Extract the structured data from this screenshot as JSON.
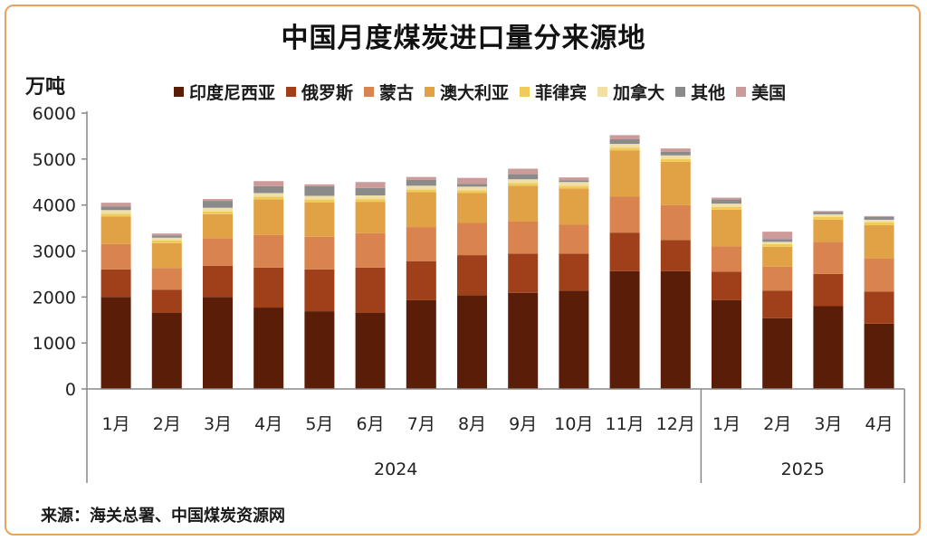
{
  "title": "中国月度煤炭进口量分来源地",
  "source_note": "来源：海关总署、中国煤炭资源网",
  "colors": {
    "frame": "#e9a25a",
    "series": [
      "#5a1e08",
      "#a0401a",
      "#d9834e",
      "#e0a245",
      "#f0cb5a",
      "#f1dfa8",
      "#8a8a8a",
      "#cc9a98"
    ]
  },
  "chart_data": {
    "type": "bar",
    "stacked": true,
    "ylabel": "万吨",
    "ylim": [
      0,
      6000
    ],
    "yticks": [
      0,
      1000,
      2000,
      3000,
      4000,
      5000,
      6000
    ],
    "grid": false,
    "legend_position": "top",
    "categories": [
      "1月",
      "2月",
      "3月",
      "4月",
      "5月",
      "6月",
      "7月",
      "8月",
      "9月",
      "10月",
      "11月",
      "12月",
      "1月",
      "2月",
      "3月",
      "4月"
    ],
    "year_groups": [
      {
        "label": "2024",
        "count": 12
      },
      {
        "label": "2025",
        "count": 4
      }
    ],
    "series": [
      {
        "name": "印度尼西亚",
        "values": [
          2000,
          1660,
          2000,
          1770,
          1690,
          1660,
          1930,
          2040,
          2090,
          2140,
          2560,
          2560,
          1930,
          1540,
          1800,
          1420
        ]
      },
      {
        "name": "俄罗斯",
        "values": [
          600,
          500,
          680,
          870,
          910,
          980,
          850,
          870,
          850,
          800,
          840,
          680,
          620,
          600,
          700,
          700
        ]
      },
      {
        "name": "蒙古",
        "values": [
          550,
          470,
          600,
          710,
          710,
          750,
          740,
          700,
          700,
          630,
          780,
          760,
          550,
          520,
          700,
          720
        ]
      },
      {
        "name": "澳大利亚",
        "values": [
          600,
          540,
          520,
          770,
          750,
          680,
          760,
          650,
          780,
          790,
          1010,
          940,
          800,
          430,
          480,
          720
        ]
      },
      {
        "name": "菲律宾",
        "values": [
          60,
          60,
          60,
          60,
          60,
          60,
          60,
          60,
          60,
          60,
          60,
          60,
          60,
          60,
          60,
          60
        ]
      },
      {
        "name": "加拿大",
        "values": [
          80,
          60,
          80,
          80,
          80,
          80,
          80,
          80,
          80,
          80,
          80,
          80,
          70,
          50,
          60,
          60
        ]
      },
      {
        "name": "其他",
        "values": [
          80,
          50,
          150,
          150,
          210,
          160,
          130,
          60,
          110,
          40,
          100,
          80,
          90,
          60,
          50,
          60
        ]
      },
      {
        "name": "美国",
        "values": [
          80,
          40,
          40,
          110,
          40,
          130,
          60,
          130,
          120,
          60,
          90,
          70,
          40,
          160,
          20,
          20
        ]
      }
    ]
  }
}
